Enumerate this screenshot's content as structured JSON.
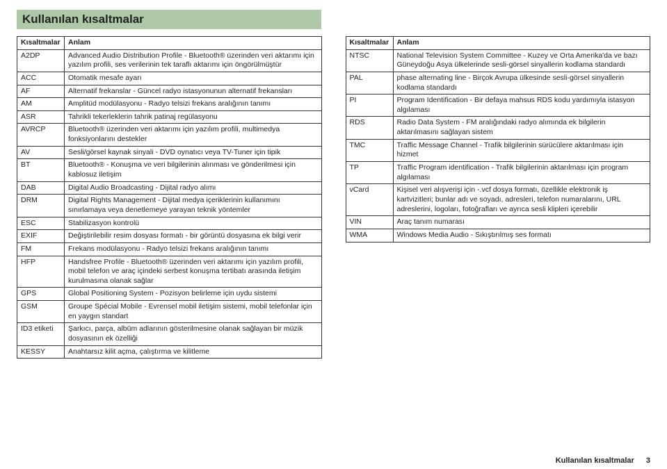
{
  "page_title": "Kullanılan kısaltmalar",
  "footer_text": "Kullanılan kısaltmalar",
  "page_number": "3",
  "header_abbr": "Kısaltmalar",
  "header_def": "Anlam",
  "left": [
    {
      "a": "A2DP",
      "d": "Advanced Audio Distribution Profile - Bluetooth® üzerinden veri aktarımı için yazılım profili, ses verilerinin tek taraflı aktarımı için öngörülmüştür"
    },
    {
      "a": "ACC",
      "d": "Otomatik mesafe ayarı"
    },
    {
      "a": "AF",
      "d": "Alternatif frekanslar - Güncel radyo istasyonunun alternatif frekansları"
    },
    {
      "a": "AM",
      "d": "Amplitüd modülasyonu - Radyo telsizi frekans aralığının tanımı"
    },
    {
      "a": "ASR",
      "d": "Tahrikli tekerleklerin tahrik patinaj regülasyonu"
    },
    {
      "a": "AVRCP",
      "d": "Bluetooth® üzerinden veri aktarımı için yazılım profili, multimedya fonksiyonlarını destekler"
    },
    {
      "a": "AV",
      "d": "Sesli/görsel kaynak sinyali - DVD oynatıcı veya TV-Tuner için tipik"
    },
    {
      "a": "BT",
      "d": "Bluetooth® - Konuşma ve veri bilgilerinin alınması ve gönderilmesi için kablosuz iletişim"
    },
    {
      "a": "DAB",
      "d": "Digital Audio Broadcasting - Dijital radyo alımı"
    },
    {
      "a": "DRM",
      "d": "Digital Rights Management - Dijital medya içeriklerinin kullanımını sınırlamaya veya denetlemeye yarayan teknik yöntemler"
    },
    {
      "a": "ESC",
      "d": "Stabilizasyon kontrolü"
    },
    {
      "a": "EXIF",
      "d": "Değiştirilebilir resim dosyası formatı - bir görüntü dosyasına ek bilgi verir"
    },
    {
      "a": "FM",
      "d": "Frekans modülasyonu - Radyo telsizi frekans aralığının tanımı"
    },
    {
      "a": "HFP",
      "d": "Handsfree Profile - Bluetooth® üzerinden veri aktarımı için yazılım profili, mobil telefon ve araç içindeki serbest konuşma tertibatı arasında iletişim kurulmasına olanak sağlar"
    },
    {
      "a": "GPS",
      "d": "Global Positioning System - Pozisyon belirleme için uydu sistemi"
    },
    {
      "a": "GSM",
      "d": "Groupe Spécial Mobile - Evrensel mobil iletişim sistemi, mobil telefonlar için en yaygın standart"
    },
    {
      "a": "ID3 etiketi",
      "d": "Şarkıcı, parça, albüm adlarının gösterilmesine olanak sağlayan bir müzik dosyasının ek özelliği"
    },
    {
      "a": "KESSY",
      "d": "Anahtarsız kilit açma, çalıştırma ve kilitleme"
    }
  ],
  "right": [
    {
      "a": "NTSC",
      "d": "National Television System Committee - Kuzey ve Orta Amerika'da ve bazı Güneydoğu Asya ülkelerinde sesli-görsel sinyallerin kodlama standardı"
    },
    {
      "a": "PAL",
      "d": "phase alternating line - Birçok Avrupa ülkesinde sesli-görsel sinyallerin kodlama standardı"
    },
    {
      "a": "PI",
      "d": "Program Identification - Bir defaya mahsus RDS kodu yardımıyla istasyon algılaması"
    },
    {
      "a": "RDS",
      "d": "Radio Data System - FM aralığındaki radyo alımında ek bilgilerin aktarılmasını sağlayan sistem"
    },
    {
      "a": "TMC",
      "d": "Traffic Message Channel - Trafik bilgilerinin sürücülere aktarılması için hizmet"
    },
    {
      "a": "TP",
      "d": "Traffic Program identification - Trafik bilgilerinin aktarılması için program algılaması"
    },
    {
      "a": "vCard",
      "d": "Kişisel veri alışverişi için -.vcf dosya formatı, özellikle elektronik iş kartvizitleri; bunlar adı ve soyadı, adresleri, telefon numaralarını, URL adreslerini, logoları, fotoğrafları ve ayrıca sesli klipleri içerebilir"
    },
    {
      "a": "VIN",
      "d": "Araç tanım numarası"
    },
    {
      "a": "WMA",
      "d": "Windows Media Audio - Sıkıştırılmış ses formatı"
    }
  ]
}
